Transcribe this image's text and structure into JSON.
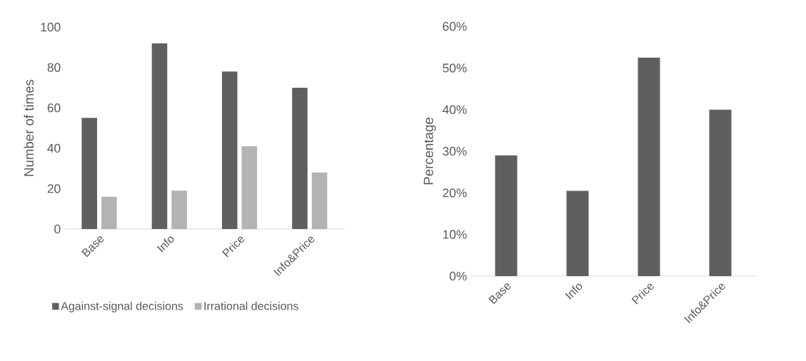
{
  "chart_data": [
    {
      "type": "bar",
      "categories": [
        "Base",
        "Info",
        "Price",
        "Info&Price"
      ],
      "ylabel": "Number of times",
      "ylim": [
        0,
        100
      ],
      "yticks": [
        0,
        20,
        40,
        60,
        80,
        100
      ],
      "legend": "bottom",
      "series": [
        {
          "name": "Against-signal decisions",
          "color": "#5f5f5f",
          "values": [
            55,
            92,
            78,
            70
          ]
        },
        {
          "name": "Irrational decisions",
          "color": "#b3b3b3",
          "values": [
            16,
            19,
            41,
            28
          ]
        }
      ]
    },
    {
      "type": "bar",
      "categories": [
        "Base",
        "Info",
        "Price",
        "Info&Price"
      ],
      "ylabel": "Percentage",
      "ylim": [
        0,
        60
      ],
      "color": "#5f5f5f",
      "values": [
        29,
        20.5,
        52.5,
        40
      ],
      "yticks": [
        {
          "value": 0,
          "label": "0%"
        },
        {
          "value": 10,
          "label": "10%"
        },
        {
          "value": 20,
          "label": "20%"
        },
        {
          "value": 30,
          "label": "30%"
        },
        {
          "value": 40,
          "label": "40%"
        },
        {
          "value": 50,
          "label": "50%"
        },
        {
          "value": 60,
          "label": "60%"
        }
      ]
    }
  ]
}
